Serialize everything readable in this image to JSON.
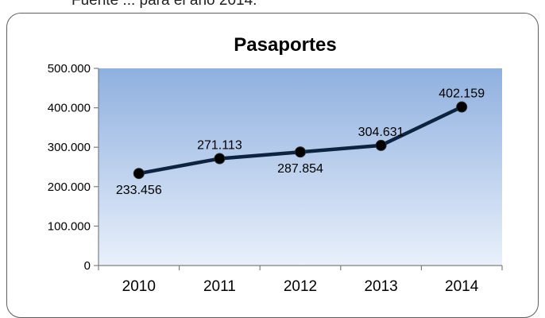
{
  "top_text": "Fuente ... para el año 2014.",
  "chart_data": {
    "type": "line",
    "title": "Pasaportes",
    "categories": [
      "2010",
      "2011",
      "2012",
      "2013",
      "2014"
    ],
    "values": [
      233456,
      271113,
      287854,
      304631,
      402159
    ],
    "data_labels": [
      "233.456",
      "271.113",
      "287.854",
      "304.631",
      "402.159"
    ],
    "ylim": [
      0,
      500000
    ],
    "y_ticks": [
      0,
      100000,
      200000,
      300000,
      400000,
      500000
    ],
    "y_tick_labels": [
      "0",
      "100.000",
      "200.000",
      "300.000",
      "400.000",
      "500.000"
    ],
    "line_color": "#0d2440",
    "marker_color": "#000000",
    "plot_gradient_top": "#8fb0df",
    "plot_gradient_bottom": "#e9f0fb",
    "legend": "none",
    "grid": false
  }
}
